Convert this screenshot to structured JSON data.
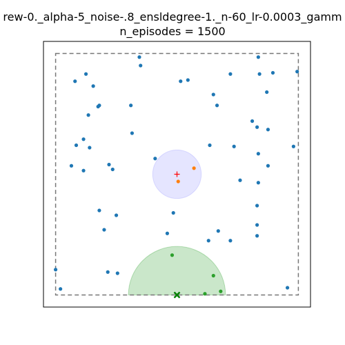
{
  "chart_data": {
    "type": "scatter",
    "title_lines": [
      "rew-0._alpha-5_noise-.8_ensldegree-1._n-60_lr-0.0003_gamm",
      "n_episodes = 1500"
    ],
    "xlabel": "",
    "ylabel": "",
    "xlim": [
      -1.1,
      1.1
    ],
    "ylim": [
      -1.1,
      1.1
    ],
    "grid": false,
    "ticks_visible": false,
    "boundary": {
      "x": [
        -1,
        1
      ],
      "y": [
        -1,
        1
      ],
      "style": "dashed",
      "color": "#777777"
    },
    "blue_circle": {
      "center": [
        0,
        0
      ],
      "radius": 0.2,
      "color": "#0000ff"
    },
    "green_semicircle": {
      "center": [
        0,
        -1
      ],
      "radius": 0.4,
      "color": "#2ca02c"
    },
    "target_marker": {
      "x": 0,
      "y": 0,
      "symbol": "+",
      "color": "#ff0000"
    },
    "goal_marker": {
      "x": 0,
      "y": -1,
      "symbol": "x",
      "color": "#008000"
    },
    "series": [
      {
        "color": "#1f77b4",
        "points": [
          [
            -0.31,
            0.97
          ],
          [
            0.67,
            0.97
          ],
          [
            -0.3,
            0.9
          ],
          [
            -0.75,
            0.83
          ],
          [
            -0.84,
            0.77
          ],
          [
            0.44,
            0.83
          ],
          [
            0.68,
            0.83
          ],
          [
            0.79,
            0.84
          ],
          [
            0.99,
            0.85
          ],
          [
            0.03,
            0.77
          ],
          [
            0.09,
            0.78
          ],
          [
            -0.69,
            0.73
          ],
          [
            0.3,
            0.66
          ],
          [
            0.74,
            0.68
          ],
          [
            -0.65,
            0.56
          ],
          [
            -0.64,
            0.57
          ],
          [
            -0.38,
            0.57
          ],
          [
            0.33,
            0.57
          ],
          [
            -0.73,
            0.49
          ],
          [
            0.62,
            0.44
          ],
          [
            0.66,
            0.39
          ],
          [
            0.75,
            0.37
          ],
          [
            -0.37,
            0.34
          ],
          [
            -0.77,
            0.29
          ],
          [
            -0.83,
            0.24
          ],
          [
            -0.72,
            0.22
          ],
          [
            0.27,
            0.24
          ],
          [
            0.47,
            0.23
          ],
          [
            0.96,
            0.23
          ],
          [
            0.67,
            0.17
          ],
          [
            -0.18,
            0.13
          ],
          [
            -0.56,
            0.08
          ],
          [
            -0.87,
            0.07
          ],
          [
            -0.77,
            0.03
          ],
          [
            -0.53,
            0.04
          ],
          [
            0.75,
            0.07
          ],
          [
            0.52,
            -0.05
          ],
          [
            0.67,
            -0.07
          ],
          [
            0.66,
            -0.26
          ],
          [
            -0.64,
            -0.3
          ],
          [
            -0.5,
            -0.34
          ],
          [
            -0.03,
            -0.32
          ],
          [
            -0.6,
            -0.46
          ],
          [
            0.34,
            -0.47
          ],
          [
            0.66,
            -0.42
          ],
          [
            -0.08,
            -0.49
          ],
          [
            0.26,
            -0.55
          ],
          [
            0.44,
            -0.55
          ],
          [
            0.66,
            -0.51
          ],
          [
            -1.0,
            -0.79
          ],
          [
            -0.57,
            -0.81
          ],
          [
            -0.49,
            -0.82
          ],
          [
            -0.96,
            -0.95
          ],
          [
            0.91,
            -0.94
          ]
        ]
      },
      {
        "color": "#ff7f0e",
        "points": [
          [
            0.14,
            0.05
          ],
          [
            0.01,
            -0.06
          ]
        ]
      },
      {
        "color": "#2ca02c",
        "points": [
          [
            -0.04,
            -0.67
          ],
          [
            0.3,
            -0.84
          ],
          [
            0.36,
            -0.97
          ],
          [
            0.23,
            -0.99
          ]
        ]
      }
    ]
  }
}
